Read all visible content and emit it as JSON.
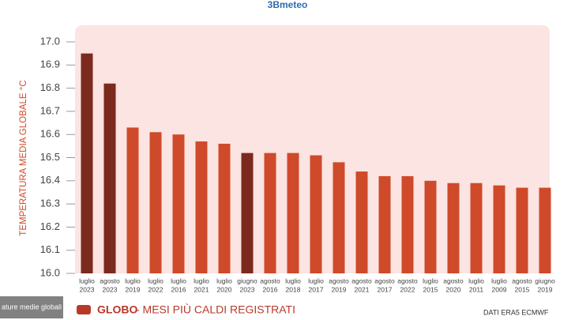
{
  "chart_data": {
    "type": "bar",
    "logo": "3Bmeteo",
    "ylabel": "TEMPERATURA MEDIA GLOBALE °C",
    "legend_label": "GLOBO",
    "subtitle": "- MESI PIÙ CALDI REGISTRATI",
    "source": "DATI ERA5 ECMWF",
    "overlay_caption": "ature medie globali",
    "categories": [
      [
        "luglio",
        "2023"
      ],
      [
        "agosto",
        "2023"
      ],
      [
        "luglio",
        "2019"
      ],
      [
        "luglio",
        "2022"
      ],
      [
        "luglio",
        "2016"
      ],
      [
        "luglio",
        "2021"
      ],
      [
        "luglio",
        "2020"
      ],
      [
        "giugno",
        "2023"
      ],
      [
        "agosto",
        "2016"
      ],
      [
        "luglio",
        "2018"
      ],
      [
        "luglio",
        "2017"
      ],
      [
        "agosto",
        "2019"
      ],
      [
        "agosto",
        "2021"
      ],
      [
        "agosto",
        "2017"
      ],
      [
        "agosto",
        "2022"
      ],
      [
        "luglio",
        "2015"
      ],
      [
        "agosto",
        "2020"
      ],
      [
        "luglio",
        "2011"
      ],
      [
        "luglio",
        "2009"
      ],
      [
        "agosto",
        "2015"
      ],
      [
        "giugno",
        "2019"
      ]
    ],
    "values": [
      16.95,
      16.82,
      16.63,
      16.61,
      16.6,
      16.57,
      16.56,
      16.52,
      16.52,
      16.52,
      16.51,
      16.48,
      16.44,
      16.42,
      16.42,
      16.4,
      16.39,
      16.39,
      16.38,
      16.37,
      16.37
    ],
    "colors": [
      "#7b2a1d",
      "#7b2a1d",
      "#cf4a2a",
      "#cf4a2a",
      "#cf4a2a",
      "#cf4a2a",
      "#cf4a2a",
      "#7b2a1d",
      "#cf4a2a",
      "#cf4a2a",
      "#cf4a2a",
      "#cf4a2a",
      "#cf4a2a",
      "#cf4a2a",
      "#cf4a2a",
      "#cf4a2a",
      "#cf4a2a",
      "#cf4a2a",
      "#cf4a2a",
      "#cf4a2a",
      "#cf4a2a"
    ],
    "legend_color": "#b8392a",
    "ylim": [
      16.0,
      17.0
    ],
    "yticks": [
      {
        "value": 16.0,
        "label": "16.0"
      },
      16.1,
      16.2,
      16.3,
      16.4,
      16.5,
      16.6,
      16.7,
      16.8,
      16.9,
      {
        "value": 17.0,
        "label": "17.0"
      }
    ]
  }
}
